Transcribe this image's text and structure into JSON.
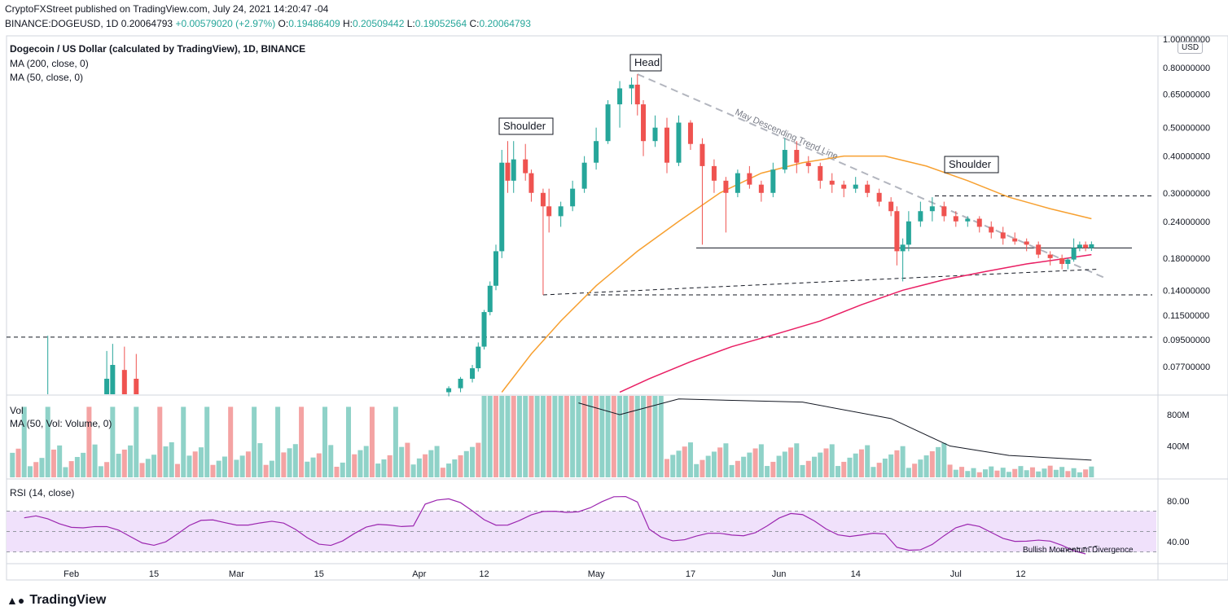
{
  "header": {
    "published": "CryptoFXStreet published on TradingView.com, July 24, 2021 14:20:47 -04",
    "symbol_line": "BINANCE:DOGEUSD, 1D  0.20064793",
    "change": "+0.00579020 (+2.97%)",
    "open_label": "O:",
    "open": "0.19486409",
    "high_label": "H:",
    "high": "0.20509442",
    "low_label": "L:",
    "low": "0.19052564",
    "close_label": "C:",
    "close": "0.20064793"
  },
  "legend": {
    "title": "Dogecoin / US Dollar (calculated by TradingView), 1D, BINANCE",
    "ma200": "MA (200, close, 0)",
    "ma50": "MA (50, close, 0)",
    "vol_title": "Vol",
    "vol_ma": "MA (50, Vol: Volume, 0)",
    "rsi_title": "RSI (14, close)"
  },
  "logo": {
    "text": "TradingView"
  },
  "currency": "USD",
  "colors": {
    "up": "#26a69a",
    "down": "#ef5350",
    "ma50": "#f7a030",
    "ma200": "#e91e63",
    "rsi": "#9c27b0",
    "rsi_band": "#f0e1fb",
    "vol_up": "#8fd2c8",
    "vol_down": "#f4a3a3"
  },
  "chart_data": [
    {
      "type": "line",
      "title": "Dogecoin / US Dollar (calculated by TradingView), 1D, BINANCE",
      "y_scale": "log",
      "ylim": [
        0.062,
        1.0
      ],
      "y_ticks": [
        "1.00000000",
        "0.80000000",
        "0.65000000",
        "0.50000000",
        "0.40000000",
        "0.30000000",
        "0.24000000",
        "0.18000000",
        "0.14000000",
        "0.11500000",
        "0.09500000",
        "0.07700000"
      ],
      "y_tick_values": [
        1.0,
        0.8,
        0.65,
        0.5,
        0.4,
        0.3,
        0.24,
        0.18,
        0.14,
        0.115,
        0.095,
        0.077
      ],
      "x_ticks": [
        "Feb",
        "15",
        "Mar",
        "15",
        "Apr",
        "12",
        "May",
        "17",
        "Jun",
        "14",
        "Jul",
        "12"
      ],
      "x_tick_dates": [
        "2021-02-01",
        "2021-02-15",
        "2021-03-01",
        "2021-03-15",
        "2021-04-01",
        "2021-04-12",
        "2021-05-01",
        "2021-05-17",
        "2021-06-01",
        "2021-06-14",
        "2021-07-01",
        "2021-07-12"
      ],
      "candles": [
        {
          "date": "2021-04-06",
          "o": 0.063,
          "h": 0.066,
          "l": 0.061,
          "c": 0.065
        },
        {
          "date": "2021-04-08",
          "o": 0.065,
          "h": 0.071,
          "l": 0.063,
          "c": 0.07
        },
        {
          "date": "2021-04-10",
          "o": 0.07,
          "h": 0.078,
          "l": 0.068,
          "c": 0.076
        },
        {
          "date": "2021-04-11",
          "o": 0.076,
          "h": 0.093,
          "l": 0.074,
          "c": 0.09
        },
        {
          "date": "2021-04-12",
          "o": 0.09,
          "h": 0.12,
          "l": 0.088,
          "c": 0.118
        },
        {
          "date": "2021-04-13",
          "o": 0.118,
          "h": 0.15,
          "l": 0.115,
          "c": 0.145
        },
        {
          "date": "2021-04-14",
          "o": 0.145,
          "h": 0.2,
          "l": 0.14,
          "c": 0.19
        },
        {
          "date": "2021-04-15",
          "o": 0.19,
          "h": 0.42,
          "l": 0.18,
          "c": 0.38
        },
        {
          "date": "2021-04-16",
          "o": 0.38,
          "h": 0.45,
          "l": 0.3,
          "c": 0.33
        },
        {
          "date": "2021-04-17",
          "o": 0.33,
          "h": 0.45,
          "l": 0.3,
          "c": 0.39
        },
        {
          "date": "2021-04-19",
          "o": 0.39,
          "h": 0.44,
          "l": 0.33,
          "c": 0.35
        },
        {
          "date": "2021-04-20",
          "o": 0.35,
          "h": 0.36,
          "l": 0.28,
          "c": 0.3
        },
        {
          "date": "2021-04-22",
          "o": 0.3,
          "h": 0.31,
          "l": 0.135,
          "c": 0.27
        },
        {
          "date": "2021-04-23",
          "o": 0.27,
          "h": 0.31,
          "l": 0.22,
          "c": 0.25
        },
        {
          "date": "2021-04-25",
          "o": 0.25,
          "h": 0.28,
          "l": 0.23,
          "c": 0.27
        },
        {
          "date": "2021-04-27",
          "o": 0.27,
          "h": 0.33,
          "l": 0.26,
          "c": 0.31
        },
        {
          "date": "2021-04-29",
          "o": 0.31,
          "h": 0.4,
          "l": 0.3,
          "c": 0.38
        },
        {
          "date": "2021-05-01",
          "o": 0.38,
          "h": 0.5,
          "l": 0.36,
          "c": 0.45
        },
        {
          "date": "2021-05-03",
          "o": 0.45,
          "h": 0.62,
          "l": 0.44,
          "c": 0.6
        },
        {
          "date": "2021-05-05",
          "o": 0.6,
          "h": 0.72,
          "l": 0.5,
          "c": 0.68
        },
        {
          "date": "2021-05-07",
          "o": 0.68,
          "h": 0.74,
          "l": 0.6,
          "c": 0.7
        },
        {
          "date": "2021-05-08",
          "o": 0.7,
          "h": 0.76,
          "l": 0.55,
          "c": 0.6
        },
        {
          "date": "2021-05-09",
          "o": 0.6,
          "h": 0.62,
          "l": 0.4,
          "c": 0.45
        },
        {
          "date": "2021-05-11",
          "o": 0.45,
          "h": 0.55,
          "l": 0.43,
          "c": 0.5
        },
        {
          "date": "2021-05-13",
          "o": 0.5,
          "h": 0.54,
          "l": 0.35,
          "c": 0.38
        },
        {
          "date": "2021-05-15",
          "o": 0.38,
          "h": 0.55,
          "l": 0.37,
          "c": 0.52
        },
        {
          "date": "2021-05-17",
          "o": 0.52,
          "h": 0.53,
          "l": 0.42,
          "c": 0.44
        },
        {
          "date": "2021-05-19",
          "o": 0.44,
          "h": 0.46,
          "l": 0.2,
          "c": 0.37
        },
        {
          "date": "2021-05-21",
          "o": 0.37,
          "h": 0.39,
          "l": 0.3,
          "c": 0.33
        },
        {
          "date": "2021-05-23",
          "o": 0.33,
          "h": 0.34,
          "l": 0.22,
          "c": 0.3
        },
        {
          "date": "2021-05-25",
          "o": 0.3,
          "h": 0.36,
          "l": 0.29,
          "c": 0.35
        },
        {
          "date": "2021-05-27",
          "o": 0.35,
          "h": 0.37,
          "l": 0.31,
          "c": 0.32
        },
        {
          "date": "2021-05-29",
          "o": 0.32,
          "h": 0.33,
          "l": 0.28,
          "c": 0.3
        },
        {
          "date": "2021-05-31",
          "o": 0.3,
          "h": 0.38,
          "l": 0.29,
          "c": 0.36
        },
        {
          "date": "2021-06-02",
          "o": 0.36,
          "h": 0.46,
          "l": 0.35,
          "c": 0.42
        },
        {
          "date": "2021-06-04",
          "o": 0.42,
          "h": 0.45,
          "l": 0.35,
          "c": 0.38
        },
        {
          "date": "2021-06-06",
          "o": 0.38,
          "h": 0.4,
          "l": 0.35,
          "c": 0.37
        },
        {
          "date": "2021-06-08",
          "o": 0.37,
          "h": 0.38,
          "l": 0.31,
          "c": 0.33
        },
        {
          "date": "2021-06-10",
          "o": 0.33,
          "h": 0.35,
          "l": 0.3,
          "c": 0.32
        },
        {
          "date": "2021-06-12",
          "o": 0.32,
          "h": 0.33,
          "l": 0.29,
          "c": 0.31
        },
        {
          "date": "2021-06-14",
          "o": 0.31,
          "h": 0.34,
          "l": 0.3,
          "c": 0.32
        },
        {
          "date": "2021-06-16",
          "o": 0.32,
          "h": 0.33,
          "l": 0.29,
          "c": 0.3
        },
        {
          "date": "2021-06-18",
          "o": 0.3,
          "h": 0.31,
          "l": 0.27,
          "c": 0.28
        },
        {
          "date": "2021-06-20",
          "o": 0.28,
          "h": 0.29,
          "l": 0.25,
          "c": 0.26
        },
        {
          "date": "2021-06-21",
          "o": 0.26,
          "h": 0.27,
          "l": 0.17,
          "c": 0.19
        },
        {
          "date": "2021-06-22",
          "o": 0.19,
          "h": 0.21,
          "l": 0.15,
          "c": 0.2
        },
        {
          "date": "2021-06-23",
          "o": 0.2,
          "h": 0.26,
          "l": 0.19,
          "c": 0.24
        },
        {
          "date": "2021-06-25",
          "o": 0.24,
          "h": 0.28,
          "l": 0.23,
          "c": 0.26
        },
        {
          "date": "2021-06-27",
          "o": 0.26,
          "h": 0.29,
          "l": 0.24,
          "c": 0.27
        },
        {
          "date": "2021-06-29",
          "o": 0.27,
          "h": 0.28,
          "l": 0.24,
          "c": 0.25
        },
        {
          "date": "2021-07-01",
          "o": 0.25,
          "h": 0.26,
          "l": 0.23,
          "c": 0.24
        },
        {
          "date": "2021-07-03",
          "o": 0.24,
          "h": 0.25,
          "l": 0.23,
          "c": 0.245
        },
        {
          "date": "2021-07-05",
          "o": 0.245,
          "h": 0.25,
          "l": 0.22,
          "c": 0.23
        },
        {
          "date": "2021-07-07",
          "o": 0.23,
          "h": 0.24,
          "l": 0.21,
          "c": 0.22
        },
        {
          "date": "2021-07-09",
          "o": 0.22,
          "h": 0.23,
          "l": 0.2,
          "c": 0.21
        },
        {
          "date": "2021-07-11",
          "o": 0.21,
          "h": 0.22,
          "l": 0.2,
          "c": 0.205
        },
        {
          "date": "2021-07-13",
          "o": 0.205,
          "h": 0.21,
          "l": 0.19,
          "c": 0.2
        },
        {
          "date": "2021-07-15",
          "o": 0.2,
          "h": 0.205,
          "l": 0.18,
          "c": 0.185
        },
        {
          "date": "2021-07-17",
          "o": 0.185,
          "h": 0.19,
          "l": 0.17,
          "c": 0.18
        },
        {
          "date": "2021-07-19",
          "o": 0.18,
          "h": 0.185,
          "l": 0.165,
          "c": 0.172
        },
        {
          "date": "2021-07-20",
          "o": 0.172,
          "h": 0.18,
          "l": 0.165,
          "c": 0.178
        },
        {
          "date": "2021-07-21",
          "o": 0.178,
          "h": 0.21,
          "l": 0.175,
          "c": 0.195
        },
        {
          "date": "2021-07-22",
          "o": 0.195,
          "h": 0.205,
          "l": 0.19,
          "c": 0.2
        },
        {
          "date": "2021-07-23",
          "o": 0.2,
          "h": 0.205,
          "l": 0.19,
          "c": 0.195
        },
        {
          "date": "2021-07-24",
          "o": 0.1949,
          "h": 0.2051,
          "l": 0.1905,
          "c": 0.2006
        }
      ],
      "early_candles": [
        {
          "date": "2021-01-28",
          "o": 0.025,
          "h": 0.098,
          "l": 0.02,
          "c": 0.04
        },
        {
          "date": "2021-02-07",
          "o": 0.05,
          "h": 0.087,
          "l": 0.045,
          "c": 0.07
        },
        {
          "date": "2021-02-08",
          "o": 0.07,
          "h": 0.092,
          "l": 0.06,
          "c": 0.078
        },
        {
          "date": "2021-02-10",
          "o": 0.075,
          "h": 0.09,
          "l": 0.06,
          "c": 0.07
        },
        {
          "date": "2021-02-12",
          "o": 0.07,
          "h": 0.085,
          "l": 0.06,
          "c": 0.065
        }
      ],
      "series": [
        {
          "name": "MA (50, close, 0)",
          "points": [
            [
              "2021-04-15",
              0.063
            ],
            [
              "2021-04-20",
              0.085
            ],
            [
              "2021-04-25",
              0.11
            ],
            [
              "2021-05-01",
              0.145
            ],
            [
              "2021-05-08",
              0.19
            ],
            [
              "2021-05-15",
              0.24
            ],
            [
              "2021-05-22",
              0.3
            ],
            [
              "2021-05-29",
              0.35
            ],
            [
              "2021-06-05",
              0.38
            ],
            [
              "2021-06-12",
              0.4
            ],
            [
              "2021-06-19",
              0.4
            ],
            [
              "2021-06-26",
              0.37
            ],
            [
              "2021-07-03",
              0.33
            ],
            [
              "2021-07-10",
              0.29
            ],
            [
              "2021-07-17",
              0.265
            ],
            [
              "2021-07-24",
              0.245
            ]
          ]
        },
        {
          "name": "MA (200, close, 0)",
          "points": [
            [
              "2021-05-05",
              0.063
            ],
            [
              "2021-05-10",
              0.07
            ],
            [
              "2021-05-17",
              0.08
            ],
            [
              "2021-05-24",
              0.09
            ],
            [
              "2021-06-01",
              0.1
            ],
            [
              "2021-06-08",
              0.11
            ],
            [
              "2021-06-15",
              0.125
            ],
            [
              "2021-06-22",
              0.14
            ],
            [
              "2021-06-29",
              0.152
            ],
            [
              "2021-07-06",
              0.162
            ],
            [
              "2021-07-13",
              0.172
            ],
            [
              "2021-07-20",
              0.18
            ],
            [
              "2021-07-24",
              0.185
            ]
          ]
        }
      ],
      "levels": [
        {
          "style": "dashed",
          "value": 0.097
        },
        {
          "style": "dashed",
          "value": 0.135
        },
        {
          "style": "dashed",
          "value": 0.293
        },
        {
          "style": "solid",
          "value": 0.195
        }
      ],
      "trendlines": [
        {
          "label": "May Descending Trend Line",
          "from": [
            "2021-05-08",
            0.76
          ],
          "to": [
            "2021-07-26",
            0.155
          ]
        },
        {
          "label": "",
          "from": [
            "2021-04-22",
            0.135
          ],
          "to": [
            "2021-07-25",
            0.165
          ]
        }
      ],
      "annotations": [
        "Head",
        "Shoulder",
        "Shoulder",
        "May Descending Trend Line"
      ]
    },
    {
      "type": "bar",
      "title": "Vol",
      "y_ticks": [
        "800M",
        "400M"
      ],
      "y_tick_values": [
        800,
        400
      ],
      "ylim": [
        0,
        1050
      ],
      "values_note_unit": "M",
      "dates": [
        "2021-07-01",
        "2021-07-05",
        "2021-07-10",
        "2021-07-15",
        "2021-07-20",
        "2021-07-21",
        "2021-07-24"
      ],
      "volume_ma": [
        [
          "2021-04-28",
          950
        ],
        [
          "2021-05-05",
          800
        ],
        [
          "2021-05-15",
          1000
        ],
        [
          "2021-06-05",
          960
        ],
        [
          "2021-06-20",
          750
        ],
        [
          "2021-06-30",
          400
        ],
        [
          "2021-07-10",
          280
        ],
        [
          "2021-07-24",
          220
        ]
      ]
    },
    {
      "type": "line",
      "title": "RSI (14, close)",
      "y_ticks": [
        "80.00",
        "40.00"
      ],
      "y_tick_values": [
        80,
        40
      ],
      "band": [
        30,
        70
      ],
      "midline": 50,
      "annotations": [
        "Bullish Momentum Divergence"
      ]
    }
  ],
  "labels": {
    "head": "Head",
    "shoulder_left": "Shoulder",
    "shoulder_right": "Shoulder",
    "trend": "May Descending Trend Line",
    "divergence": "Bullish Momentum Divergence"
  }
}
